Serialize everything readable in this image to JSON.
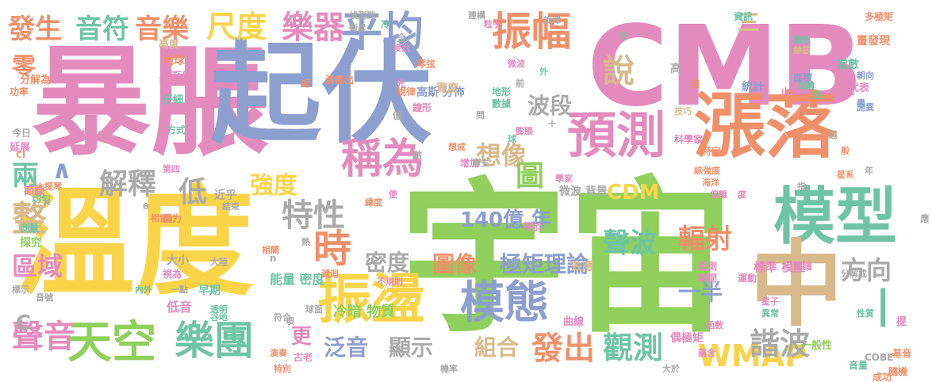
{
  "palette": {
    "pink": "#e48bbd",
    "yellow": "#f9d449",
    "green": "#8fcf5c",
    "blue": "#8d9fcf",
    "orange": "#f0906a",
    "teal": "#6fc4a6",
    "tan": "#d8b98c",
    "gray": "#aaaaaa"
  },
  "words": [
    {
      "t": "宇宙",
      "c": "green"
    },
    {
      "t": "溫度",
      "c": "yellow"
    },
    {
      "t": "暴脹",
      "c": "pink"
    },
    {
      "t": "起伏",
      "c": "blue"
    },
    {
      "t": "CMB",
      "c": "pink"
    },
    {
      "t": "漲落",
      "c": "orange"
    },
    {
      "t": "模型",
      "c": "teal"
    },
    {
      "t": "預測",
      "c": "pink"
    },
    {
      "t": "中",
      "c": "tan"
    },
    {
      "t": "振盪",
      "c": "yellow"
    },
    {
      "t": "模態",
      "c": "blue"
    },
    {
      "t": "稱為",
      "c": "pink"
    },
    {
      "t": "平均",
      "c": "blue"
    },
    {
      "t": "振幅",
      "c": "orange"
    },
    {
      "t": "天空",
      "c": "green"
    },
    {
      "t": "樂團",
      "c": "teal"
    },
    {
      "t": "聲音",
      "c": "pink"
    },
    {
      "t": "時",
      "c": "orange"
    },
    {
      "t": "特性",
      "c": "gray"
    },
    {
      "t": "樂器",
      "c": "pink"
    },
    {
      "t": "尺度",
      "c": "yellow"
    },
    {
      "t": "音樂",
      "c": "orange"
    },
    {
      "t": "音符",
      "c": "teal"
    },
    {
      "t": "發生",
      "c": "orange"
    },
    {
      "t": "說",
      "c": "tan"
    },
    {
      "t": "WMAP",
      "c": "yellow"
    },
    {
      "t": "諧波",
      "c": "gray"
    },
    {
      "t": "觀測",
      "c": "teal"
    },
    {
      "t": "發出",
      "c": "orange"
    },
    {
      "t": "組合",
      "c": "tan"
    },
    {
      "t": "顯示",
      "c": "gray"
    },
    {
      "t": "泛音",
      "c": "blue"
    },
    {
      "t": "更",
      "c": "pink"
    },
    {
      "t": "聲波",
      "c": "teal"
    },
    {
      "t": "輻射",
      "c": "orange"
    },
    {
      "t": "極矩理論",
      "c": "blue"
    },
    {
      "t": "圖像",
      "c": "orange"
    },
    {
      "t": "密度",
      "c": "gray"
    },
    {
      "t": "140億 年",
      "c": "blue"
    },
    {
      "t": "CDM",
      "c": "yellow"
    },
    {
      "t": "強度",
      "c": "yellow"
    },
    {
      "t": "低",
      "c": "gray"
    },
    {
      "t": "解釋",
      "c": "gray"
    },
    {
      "t": "想像",
      "c": "tan"
    },
    {
      "t": "波段",
      "c": "gray"
    },
    {
      "t": "圖",
      "c": "green"
    },
    {
      "t": "區域",
      "c": "pink"
    },
    {
      "t": "整",
      "c": "tan"
    },
    {
      "t": "兩",
      "c": "teal"
    },
    {
      "t": "零",
      "c": "orange"
    },
    {
      "t": "方向",
      "c": "gray"
    },
    {
      "t": "一半",
      "c": "blue"
    },
    {
      "t": "三",
      "c": "tan"
    },
    {
      "t": "C",
      "c": "gray"
    },
    {
      "t": "∧",
      "c": "blue"
    },
    {
      "t": "∣",
      "c": "teal"
    },
    {
      "t": "冷暗 物質",
      "c": "green"
    },
    {
      "t": "能量 密度",
      "c": "teal"
    },
    {
      "t": "標準 模型",
      "c": "pink"
    },
    {
      "t": "偶極矩",
      "c": "pink"
    },
    {
      "t": "COBE",
      "c": "gray"
    },
    {
      "t": "分解成",
      "c": "gray"
    },
    {
      "t": "一般性",
      "c": "green"
    },
    {
      "t": "瞬間",
      "c": "pink"
    },
    {
      "t": "運動",
      "c": "pink"
    },
    {
      "t": "星測",
      "c": "pink"
    },
    {
      "t": "效應",
      "c": "tan"
    },
    {
      "t": "曲線",
      "c": "pink"
    },
    {
      "t": "微波 背景",
      "c": "gray"
    },
    {
      "t": "高斯 分佈",
      "c": "blue"
    },
    {
      "t": "統計",
      "c": "blue"
    },
    {
      "t": "早期",
      "c": "teal"
    },
    {
      "t": "低音",
      "c": "pink"
    },
    {
      "t": "大小",
      "c": "gray"
    },
    {
      "t": "近乎",
      "c": "gray"
    },
    {
      "t": "結束",
      "c": "gray"
    },
    {
      "t": "第四",
      "c": "pink"
    },
    {
      "t": "重力",
      "c": "orange"
    },
    {
      "t": "方式",
      "c": "teal"
    },
    {
      "t": "仔細",
      "c": "teal"
    },
    {
      "t": "星系團",
      "c": "pink"
    },
    {
      "t": "地球",
      "c": "orange"
    },
    {
      "t": "演奏出",
      "c": "orange"
    },
    {
      "t": "寬度",
      "c": "tan"
    },
    {
      "t": "畫發現",
      "c": "orange"
    },
    {
      "t": "常數",
      "c": "teal"
    },
    {
      "t": "代表",
      "c": "pink"
    },
    {
      "t": "多極矩",
      "c": "orange"
    },
    {
      "t": "科學家",
      "c": "pink"
    },
    {
      "t": "特定",
      "c": "orange"
    },
    {
      "t": "探究",
      "c": "green"
    },
    {
      "t": "測量",
      "c": "teal"
    },
    {
      "t": "節線",
      "c": "pink"
    },
    {
      "t": "延展",
      "c": "pink"
    },
    {
      "t": "功率",
      "c": "orange"
    },
    {
      "t": "分解為",
      "c": "orange"
    },
    {
      "t": "高度",
      "c": "tan"
    },
    {
      "t": "成功",
      "c": "orange"
    },
    {
      "t": "音量",
      "c": "teal"
    },
    {
      "t": "基音",
      "c": "orange"
    },
    {
      "t": "隨機",
      "c": "orange"
    },
    {
      "t": "首度",
      "c": "pink"
    },
    {
      "t": "奇怪",
      "c": "pink"
    },
    {
      "t": "面積",
      "c": "blue"
    },
    {
      "t": "球體",
      "c": "teal"
    },
    {
      "t": "赫茲",
      "c": "tan"
    },
    {
      "t": "資訊",
      "c": "teal"
    },
    {
      "t": "建構",
      "c": "gray"
    },
    {
      "t": "偵測到",
      "c": "gray"
    },
    {
      "t": "衛星",
      "c": "gray"
    },
    {
      "t": "接近",
      "c": "pink"
    },
    {
      "t": "琴弦",
      "c": "orange"
    },
    {
      "t": "規律",
      "c": "orange"
    },
    {
      "t": "鐘形",
      "c": "pink"
    },
    {
      "t": "地形",
      "c": "teal"
    },
    {
      "t": "數據",
      "c": "teal"
    },
    {
      "t": "想成",
      "c": "orange"
    },
    {
      "t": "增加",
      "c": "pink"
    },
    {
      "t": "膨脹",
      "c": "pink"
    },
    {
      "t": "學家",
      "c": "pink"
    },
    {
      "t": "綜強度",
      "c": "orange"
    },
    {
      "t": "海洋",
      "c": "orange"
    },
    {
      "t": "偏離",
      "c": "pink"
    },
    {
      "t": "圖譜",
      "c": "pink"
    },
    {
      "t": "性質",
      "c": "teal"
    },
    {
      "t": "大陸",
      "c": "gray"
    },
    {
      "t": "球面",
      "c": "gray"
    },
    {
      "t": "透明",
      "c": "teal"
    },
    {
      "t": "谷地",
      "c": "teal"
    },
    {
      "t": "符合",
      "c": "gray"
    },
    {
      "t": "古老",
      "c": "pink"
    },
    {
      "t": "特別",
      "c": "orange"
    },
    {
      "t": "機率",
      "c": "gray"
    },
    {
      "t": "大於",
      "c": "gray"
    },
    {
      "t": "不規則",
      "c": "pink"
    },
    {
      "t": "粒子",
      "c": "pink"
    },
    {
      "t": "雜訊",
      "c": "teal"
    },
    {
      "t": "朝向",
      "c": "blue"
    },
    {
      "t": "星子",
      "c": "pink"
    },
    {
      "t": "異常",
      "c": "teal"
    },
    {
      "t": "函數",
      "c": "pink"
    },
    {
      "t": "蘊含",
      "c": "pink"
    },
    {
      "t": "產生",
      "c": "gray"
    },
    {
      "t": "內外",
      "c": "teal"
    },
    {
      "t": "均勻",
      "c": "teal"
    },
    {
      "t": "大提琴",
      "c": "orange"
    },
    {
      "t": "今日",
      "c": "gray"
    },
    {
      "t": "音號",
      "c": "gray"
    },
    {
      "t": "標示",
      "c": "gray"
    },
    {
      "t": "相當於",
      "c": "orange"
    },
    {
      "t": "遞迴",
      "c": "orange"
    },
    {
      "t": "視為",
      "c": "pink"
    },
    {
      "t": "山脈",
      "c": "pink"
    },
    {
      "t": "施異",
      "c": "blue"
    },
    {
      "t": "旋律",
      "c": "gray"
    },
    {
      "t": "微波",
      "c": "pink"
    },
    {
      "t": "前",
      "c": "gray"
    },
    {
      "t": "冷",
      "c": "teal"
    },
    {
      "t": "光",
      "c": "pink"
    },
    {
      "t": "值",
      "c": "gray"
    },
    {
      "t": "點",
      "c": "gray"
    },
    {
      "t": "高",
      "c": "gray"
    },
    {
      "t": "淺",
      "c": "orange"
    },
    {
      "t": "矩",
      "c": "teal"
    },
    {
      "t": "越",
      "c": "gray"
    },
    {
      "t": "指",
      "c": "gray"
    },
    {
      "t": "年",
      "c": "gray"
    },
    {
      "t": "應",
      "c": "gray"
    },
    {
      "t": "提",
      "c": "pink"
    },
    {
      "t": "外",
      "c": "teal"
    },
    {
      "t": "球",
      "c": "teal"
    },
    {
      "t": "全",
      "c": "gray"
    },
    {
      "t": "項",
      "c": "gray"
    },
    {
      "t": "熱",
      "c": "gray"
    },
    {
      "t": "一點",
      "c": "gray"
    },
    {
      "t": "K",
      "c": "gray"
    },
    {
      "t": "CI",
      "c": "orange"
    },
    {
      "t": "θ",
      "c": "gray"
    },
    {
      "t": "n",
      "c": "gray"
    },
    {
      "t": "＋",
      "c": "gray"
    },
    {
      "t": "學",
      "c": "blue"
    },
    {
      "t": "度",
      "c": "pink"
    },
    {
      "t": "便",
      "c": "pink"
    },
    {
      "t": "等於",
      "c": "pink"
    },
    {
      "t": "問",
      "c": "gray"
    },
    {
      "t": "般",
      "c": "orange"
    },
    {
      "t": "裡",
      "c": "gray"
    },
    {
      "t": "技巧",
      "c": "tan"
    },
    {
      "t": "星系",
      "c": "orange"
    },
    {
      "t": "相關",
      "c": "orange"
    },
    {
      "t": "緯度",
      "c": "orange"
    },
    {
      "t": "演奏",
      "c": "orange"
    },
    {
      "t": "起",
      "c": "orange"
    }
  ]
}
